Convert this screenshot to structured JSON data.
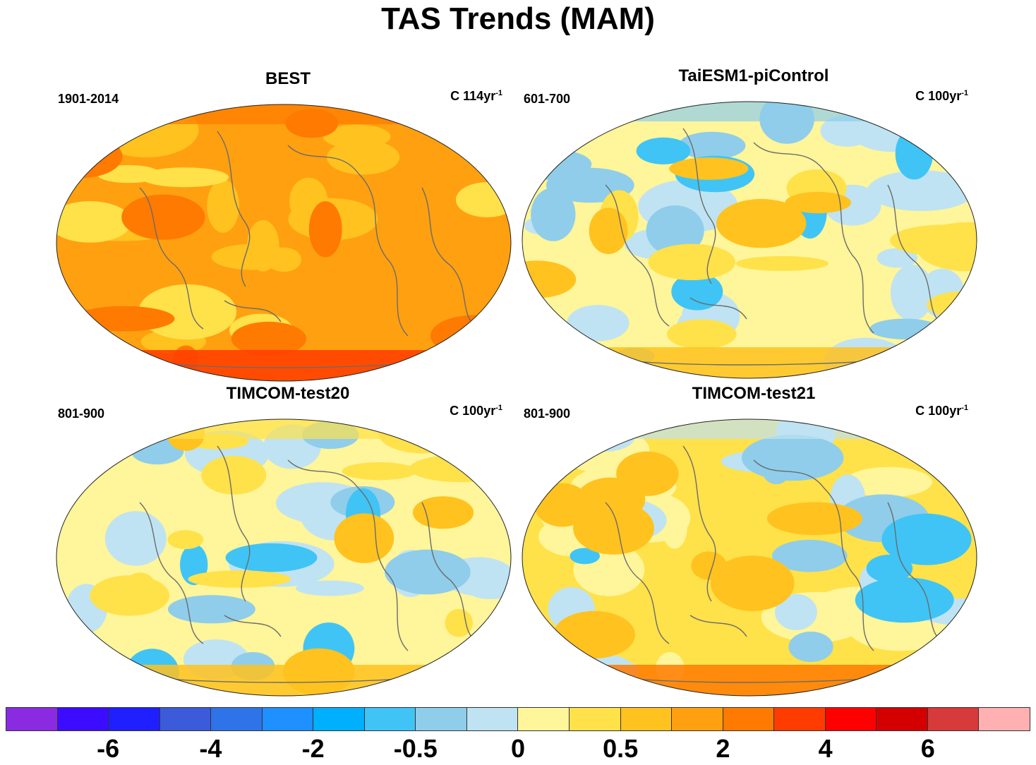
{
  "title": "TAS Trends (MAM)",
  "panels": [
    {
      "name": "BEST",
      "period": "1901-2014",
      "units": "C 114yr",
      "units_exp": "-1",
      "theme": "warm"
    },
    {
      "name": "TaiESM1-piControl",
      "period": "601-700",
      "units": "C 100yr",
      "units_exp": "-1",
      "theme": "mixed"
    },
    {
      "name": "TIMCOM-test20",
      "period": "801-900",
      "units": "C 100yr",
      "units_exp": "-1",
      "theme": "mixed2"
    },
    {
      "name": "TIMCOM-test21",
      "period": "801-900",
      "units": "C 100yr",
      "units_exp": "-1",
      "theme": "mixed3"
    }
  ],
  "colorbar": {
    "colors": [
      "#8a2be2",
      "#3b0cff",
      "#1f1fff",
      "#3b5bdb",
      "#2f73e8",
      "#1e90ff",
      "#00b0ff",
      "#40c4f5",
      "#8fcdeb",
      "#bfe3f2",
      "#fff59a",
      "#ffe14a",
      "#ffc21f",
      "#ffa010",
      "#ff7a00",
      "#ff3c00",
      "#ff0000",
      "#d40000",
      "#d63a3a",
      "#ffb0b0"
    ],
    "labels": [
      "-6",
      "-4",
      "-2",
      "-0.5",
      "0",
      "0.5",
      "2",
      "4",
      "6"
    ]
  }
}
